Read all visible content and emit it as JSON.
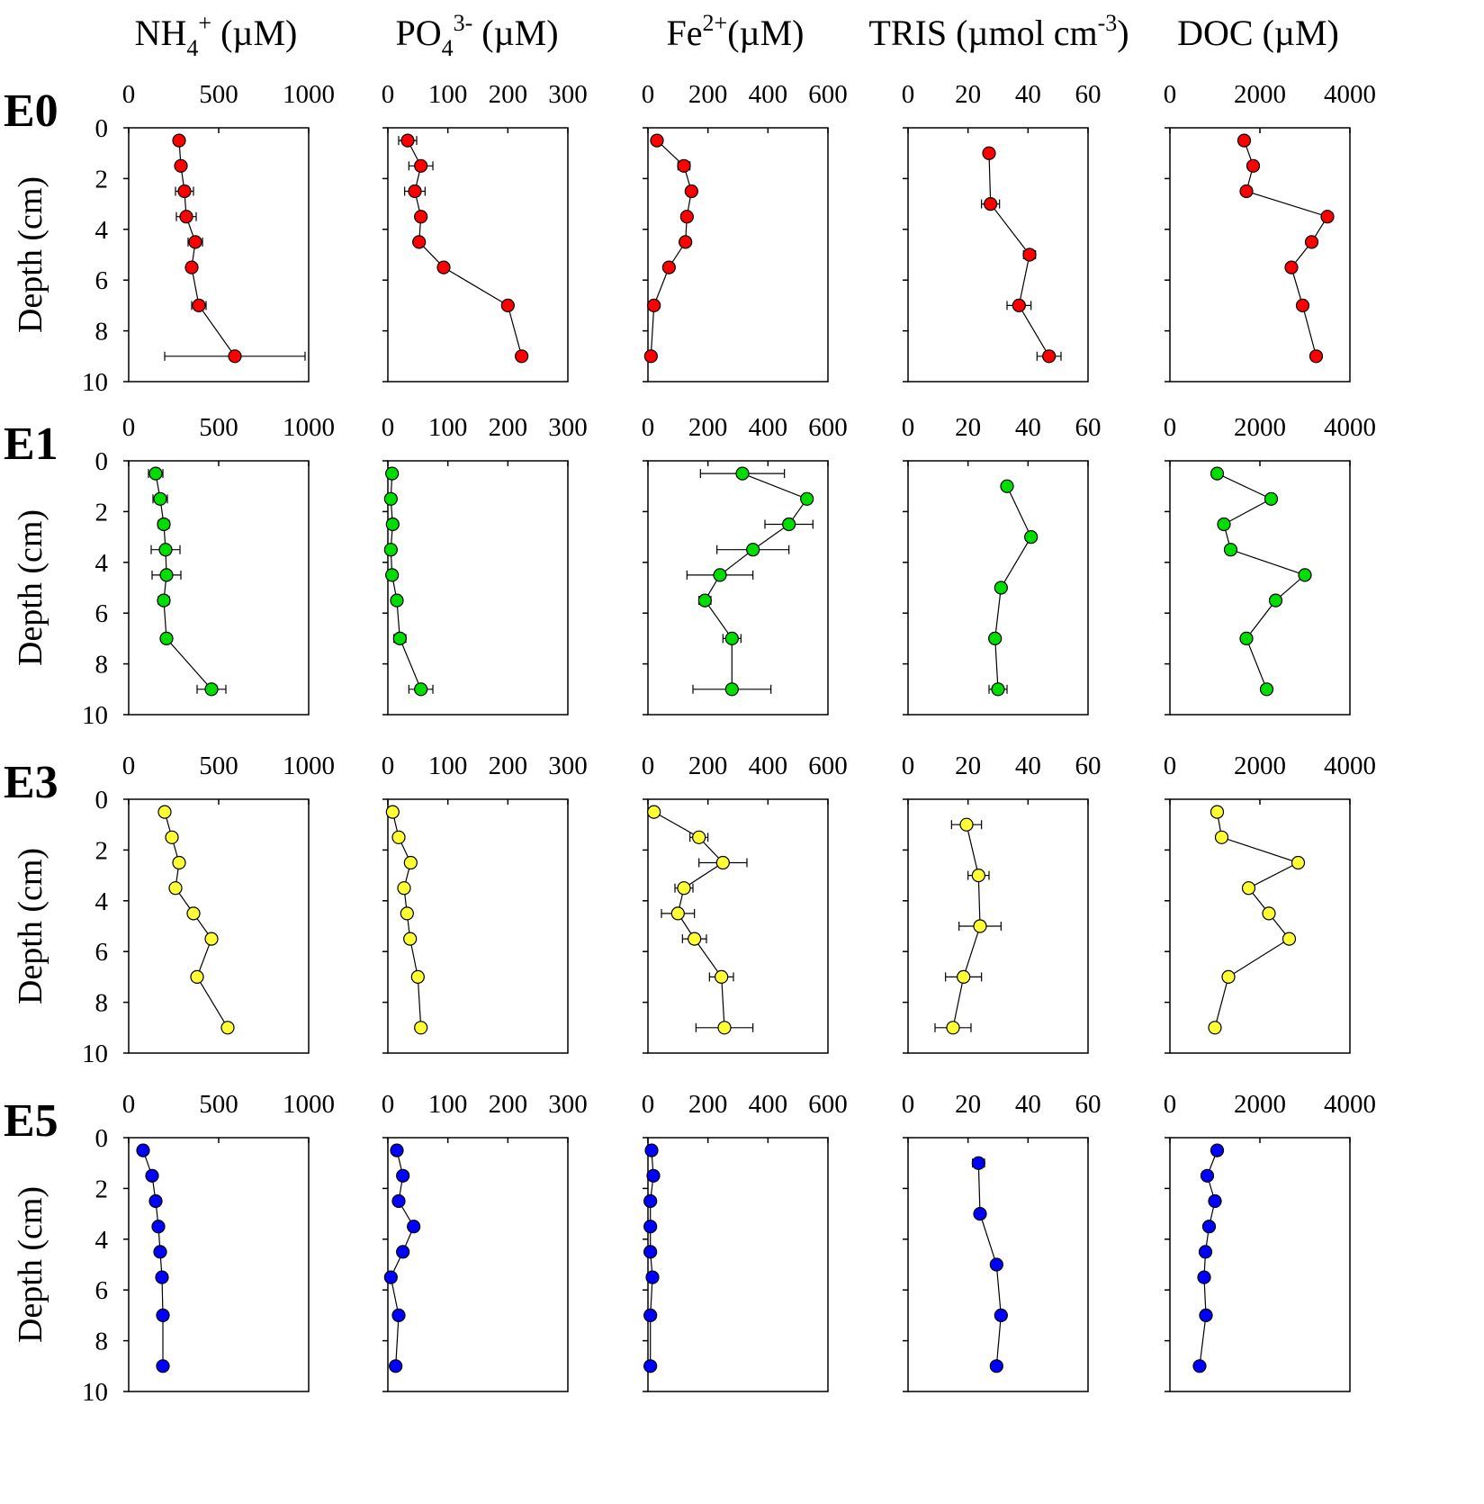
{
  "chart_data": {
    "type": "scatter",
    "panel_layout": "5 columns x 4 rows, depth profiles",
    "columns": [
      {
        "key": "nh4",
        "title_base": "NH",
        "title_sub": "4",
        "title_sup": "+",
        "title_unit": " (µM)",
        "xlim": [
          0,
          1000
        ],
        "xticks": [
          "0",
          "500",
          "1000"
        ]
      },
      {
        "key": "po4",
        "title_base": "PO",
        "title_sub": "4",
        "title_sup": "3-",
        "title_unit": " (µM)",
        "xlim": [
          0,
          300
        ],
        "xticks": [
          "0",
          "100",
          "200",
          "300"
        ]
      },
      {
        "key": "fe",
        "title_base": "Fe",
        "title_sub": "",
        "title_sup": "2+",
        "title_unit": "(µM)",
        "xlim": [
          0,
          600
        ],
        "xticks": [
          "0",
          "200",
          "400",
          "600"
        ]
      },
      {
        "key": "tris",
        "title_base": "TRIS (µmol cm",
        "title_sub": "",
        "title_sup": "-3",
        "title_unit": ")",
        "xlim": [
          0,
          60
        ],
        "xticks": [
          "0",
          "20",
          "40",
          "60"
        ]
      },
      {
        "key": "doc",
        "title_base": "DOC (µM)",
        "title_sub": "",
        "title_sup": "",
        "title_unit": "",
        "xlim": [
          0,
          4000
        ],
        "xticks": [
          "0",
          "2000",
          "4000"
        ]
      }
    ],
    "y_axis": {
      "label": "Depth (cm)",
      "ylim": [
        0,
        10
      ],
      "inverted": true,
      "yticks": [
        "0",
        "2",
        "4",
        "6",
        "8",
        "10"
      ]
    },
    "rows": [
      {
        "label": "E0",
        "color": "#ff0000",
        "series": {
          "nh4": [
            [
              280,
              0.5,
              0
            ],
            [
              290,
              1.5,
              0
            ],
            [
              310,
              2.5,
              50
            ],
            [
              320,
              3.5,
              55
            ],
            [
              370,
              4.5,
              40
            ],
            [
              350,
              5.5,
              0
            ],
            [
              390,
              7.0,
              40
            ],
            [
              590,
              9.0,
              390
            ]
          ],
          "po4": [
            [
              33,
              0.5,
              15
            ],
            [
              55,
              1.5,
              20
            ],
            [
              45,
              2.5,
              17
            ],
            [
              55,
              3.5,
              7
            ],
            [
              52,
              4.5,
              5
            ],
            [
              93,
              5.5,
              5
            ],
            [
              200,
              7.0,
              5
            ],
            [
              223,
              9.0,
              5
            ]
          ],
          "fe": [
            [
              30,
              0.5,
              0
            ],
            [
              120,
              1.5,
              20
            ],
            [
              145,
              2.5,
              15
            ],
            [
              130,
              3.5,
              15
            ],
            [
              125,
              4.5,
              15
            ],
            [
              70,
              5.5,
              15
            ],
            [
              20,
              7.0,
              0
            ],
            [
              10,
              9.0,
              0
            ]
          ],
          "tris": [
            [
              27,
              1.0,
              1
            ],
            [
              27.5,
              3.0,
              3
            ],
            [
              40.5,
              5.0,
              2
            ],
            [
              37,
              7.0,
              4
            ],
            [
              47,
              9.0,
              4
            ]
          ],
          "doc": [
            [
              1650,
              0.5,
              0
            ],
            [
              1850,
              1.5,
              0
            ],
            [
              1700,
              2.5,
              0
            ],
            [
              3500,
              3.5,
              0
            ],
            [
              3150,
              4.5,
              0
            ],
            [
              2700,
              5.5,
              0
            ],
            [
              2950,
              7.0,
              0
            ],
            [
              3250,
              9.0,
              0
            ]
          ]
        }
      },
      {
        "label": "E1",
        "color": "#00dd00",
        "series": {
          "nh4": [
            [
              150,
              0.5,
              40
            ],
            [
              175,
              1.5,
              40
            ],
            [
              195,
              2.5,
              30
            ],
            [
              205,
              3.5,
              80
            ],
            [
              210,
              4.5,
              80
            ],
            [
              195,
              5.5,
              30
            ],
            [
              210,
              7.0,
              20
            ],
            [
              460,
              9.0,
              80
            ]
          ],
          "po4": [
            [
              7,
              0.5,
              5
            ],
            [
              5,
              1.5,
              4
            ],
            [
              8,
              2.5,
              5
            ],
            [
              5,
              3.5,
              4
            ],
            [
              7,
              4.5,
              5
            ],
            [
              15,
              5.5,
              6
            ],
            [
              20,
              7.0,
              10
            ],
            [
              55,
              9.0,
              20
            ]
          ],
          "fe": [
            [
              315,
              0.5,
              140
            ],
            [
              530,
              1.5,
              15
            ],
            [
              470,
              2.5,
              80
            ],
            [
              350,
              3.5,
              120
            ],
            [
              240,
              4.5,
              110
            ],
            [
              190,
              5.5,
              20
            ],
            [
              280,
              7.0,
              30
            ],
            [
              280,
              9.0,
              130
            ]
          ],
          "tris": [
            [
              33,
              1.0,
              1
            ],
            [
              41,
              3.0,
              1
            ],
            [
              31,
              5.0,
              1
            ],
            [
              29,
              7.0,
              1
            ],
            [
              30,
              9.0,
              3
            ]
          ],
          "doc": [
            [
              1050,
              0.5,
              0
            ],
            [
              2250,
              1.5,
              0
            ],
            [
              1200,
              2.5,
              0
            ],
            [
              1350,
              3.5,
              0
            ],
            [
              3000,
              4.5,
              0
            ],
            [
              2350,
              5.5,
              0
            ],
            [
              1700,
              7.0,
              0
            ],
            [
              2150,
              9.0,
              0
            ]
          ]
        }
      },
      {
        "label": "E3",
        "color": "#ffff33",
        "series": {
          "nh4": [
            [
              200,
              0.5,
              0
            ],
            [
              240,
              1.5,
              0
            ],
            [
              280,
              2.5,
              0
            ],
            [
              260,
              3.5,
              0
            ],
            [
              360,
              4.5,
              0
            ],
            [
              460,
              5.5,
              0
            ],
            [
              380,
              7.0,
              0
            ],
            [
              550,
              9.0,
              0
            ]
          ],
          "po4": [
            [
              8,
              0.5,
              0
            ],
            [
              18,
              1.5,
              0
            ],
            [
              38,
              2.5,
              0
            ],
            [
              27,
              3.5,
              0
            ],
            [
              32,
              4.5,
              0
            ],
            [
              37,
              5.5,
              0
            ],
            [
              50,
              7.0,
              0
            ],
            [
              55,
              9.0,
              0
            ]
          ],
          "fe": [
            [
              20,
              0.5,
              0
            ],
            [
              170,
              1.5,
              30
            ],
            [
              250,
              2.5,
              80
            ],
            [
              120,
              3.5,
              30
            ],
            [
              100,
              4.5,
              55
            ],
            [
              155,
              5.5,
              40
            ],
            [
              245,
              7.0,
              40
            ],
            [
              255,
              9.0,
              95
            ]
          ],
          "tris": [
            [
              19.5,
              1.0,
              5
            ],
            [
              23.5,
              3.0,
              3.5
            ],
            [
              24,
              5.0,
              7
            ],
            [
              18.5,
              7.0,
              6
            ],
            [
              15,
              9.0,
              6
            ]
          ],
          "doc": [
            [
              1050,
              0.5,
              0
            ],
            [
              1150,
              1.5,
              0
            ],
            [
              2850,
              2.5,
              0
            ],
            [
              1750,
              3.5,
              0
            ],
            [
              2200,
              4.5,
              0
            ],
            [
              2650,
              5.5,
              0
            ],
            [
              1300,
              7.0,
              0
            ],
            [
              1000,
              9.0,
              0
            ]
          ]
        }
      },
      {
        "label": "E5",
        "color": "#0000ff",
        "series": {
          "nh4": [
            [
              80,
              0.5,
              0
            ],
            [
              130,
              1.5,
              0
            ],
            [
              150,
              2.5,
              0
            ],
            [
              165,
              3.5,
              0
            ],
            [
              175,
              4.5,
              0
            ],
            [
              185,
              5.5,
              0
            ],
            [
              190,
              7.0,
              0
            ],
            [
              190,
              9.0,
              0
            ]
          ],
          "po4": [
            [
              15,
              0.5,
              0
            ],
            [
              25,
              1.5,
              0
            ],
            [
              18,
              2.5,
              0
            ],
            [
              43,
              3.5,
              0
            ],
            [
              25,
              4.5,
              0
            ],
            [
              5,
              5.5,
              0
            ],
            [
              18,
              7.0,
              8
            ],
            [
              13,
              9.0,
              6
            ]
          ],
          "fe": [
            [
              12,
              0.5,
              0
            ],
            [
              18,
              1.5,
              0
            ],
            [
              8,
              2.5,
              0
            ],
            [
              8,
              3.5,
              0
            ],
            [
              8,
              4.5,
              0
            ],
            [
              15,
              5.5,
              0
            ],
            [
              8,
              7.0,
              0
            ],
            [
              8,
              9.0,
              0
            ]
          ],
          "tris": [
            [
              23.5,
              1.0,
              2
            ],
            [
              24,
              3.0,
              1
            ],
            [
              29.5,
              5.0,
              1
            ],
            [
              31,
              7.0,
              1
            ],
            [
              29.5,
              9.0,
              1
            ]
          ],
          "doc": [
            [
              1050,
              0.5,
              0
            ],
            [
              830,
              1.5,
              0
            ],
            [
              1000,
              2.5,
              0
            ],
            [
              870,
              3.5,
              0
            ],
            [
              790,
              4.5,
              0
            ],
            [
              760,
              5.5,
              0
            ],
            [
              800,
              7.0,
              0
            ],
            [
              660,
              9.0,
              0
            ]
          ]
        }
      }
    ]
  }
}
